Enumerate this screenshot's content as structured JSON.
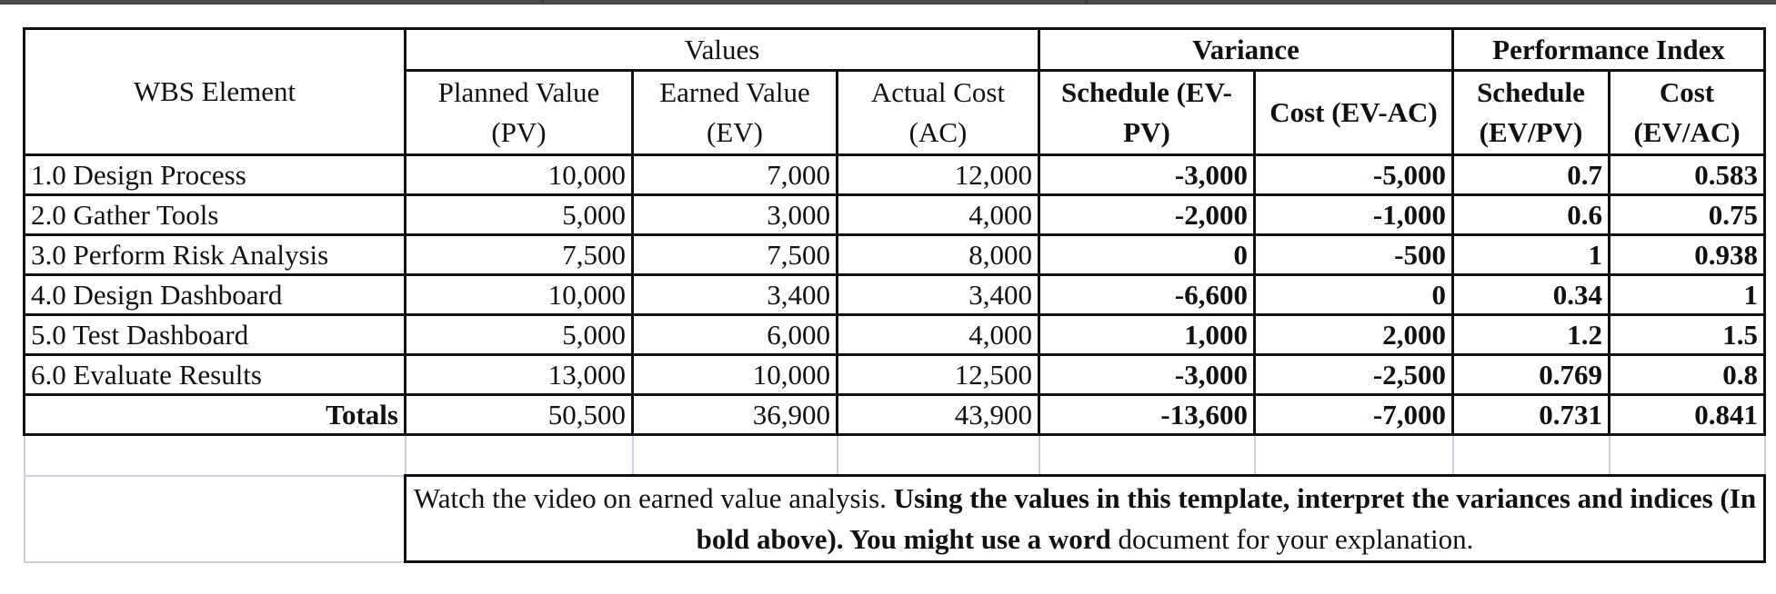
{
  "header": {
    "wbs": "WBS Element",
    "groups": {
      "values": "Values",
      "variance": "Variance",
      "performance": "Performance Index"
    },
    "columns": {
      "pv": "Planned Value (PV)",
      "ev": "Earned Value (EV)",
      "ac": "Actual Cost (AC)",
      "sv": "Schedule (EV-PV)",
      "cv": "Cost (EV-AC)",
      "spi": "Schedule (EV/PV)",
      "cpi": "Cost (EV/AC)"
    }
  },
  "rows": [
    {
      "wbs": "1.0 Design Process",
      "pv": "10,000",
      "ev": "7,000",
      "ac": "12,000",
      "sv": "-3,000",
      "cv": "-5,000",
      "spi": "0.7",
      "cpi": "0.583"
    },
    {
      "wbs": "2.0 Gather Tools",
      "pv": "5,000",
      "ev": "3,000",
      "ac": "4,000",
      "sv": "-2,000",
      "cv": "-1,000",
      "spi": "0.6",
      "cpi": "0.75"
    },
    {
      "wbs": "3.0 Perform Risk Analysis",
      "pv": "7,500",
      "ev": "7,500",
      "ac": "8,000",
      "sv": "0",
      "cv": "-500",
      "spi": "1",
      "cpi": "0.938"
    },
    {
      "wbs": "4.0 Design Dashboard",
      "pv": "10,000",
      "ev": "3,400",
      "ac": "3,400",
      "sv": "-6,600",
      "cv": "0",
      "spi": "0.34",
      "cpi": "1"
    },
    {
      "wbs": "5.0 Test Dashboard",
      "pv": "5,000",
      "ev": "6,000",
      "ac": "4,000",
      "sv": "1,000",
      "cv": "2,000",
      "spi": "1.2",
      "cpi": "1.5"
    },
    {
      "wbs": "6.0 Evaluate Results",
      "pv": "13,000",
      "ev": "10,000",
      "ac": "12,500",
      "sv": "-3,000",
      "cv": "-2,500",
      "spi": "0.769",
      "cpi": "0.8"
    }
  ],
  "totals": {
    "label": "Totals",
    "pv": "50,500",
    "ev": "36,900",
    "ac": "43,900",
    "sv": "-13,600",
    "cv": "-7,000",
    "spi": "0.731",
    "cpi": "0.841"
  },
  "note": {
    "part1": "Watch the video on earned value analysis.  ",
    "part2": "Using the values in this template, interpret the variances and indices (In bold above).  You might use a word",
    "part3": " document for your explanation."
  }
}
